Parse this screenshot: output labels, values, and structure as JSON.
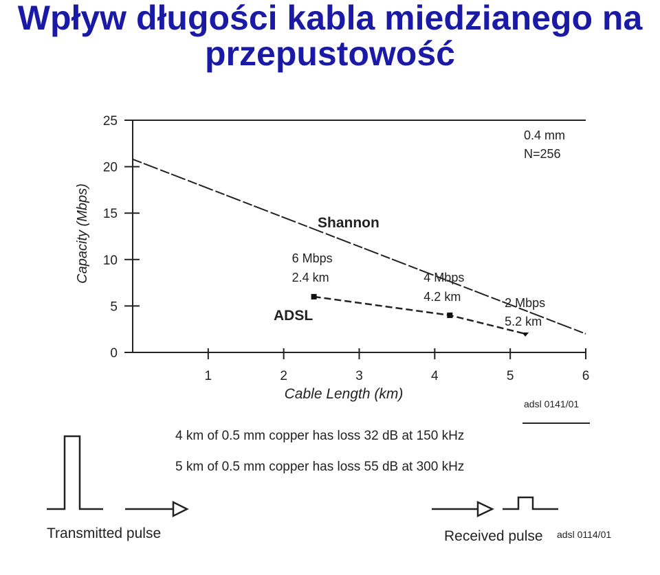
{
  "slide": {
    "title_line1": "Wpływ długości kabla miedzianego na",
    "title_line2": "przepustowość"
  },
  "chart_data": {
    "type": "line",
    "xlabel": "Cable Length (km)",
    "ylabel": "Capacity (Mbps)",
    "xlim": [
      0,
      6
    ],
    "ylim": [
      0,
      25
    ],
    "x_ticks": [
      1,
      2,
      3,
      4,
      5,
      6
    ],
    "y_ticks": [
      0,
      5,
      10,
      15,
      20,
      25
    ],
    "grid": false,
    "annotation_corner": [
      "0.4 mm",
      "N=256"
    ],
    "series": [
      {
        "name": "Shannon",
        "x": [
          0,
          6
        ],
        "y": [
          20.8,
          2.0
        ]
      },
      {
        "name": "ADSL",
        "x": [
          2.4,
          4.2,
          5.2
        ],
        "y": [
          6,
          4,
          2
        ]
      }
    ],
    "point_labels": [
      {
        "line1": "6 Mbps",
        "line2": "2.4 km",
        "x": 2.4,
        "y": 6
      },
      {
        "line1": "4 Mbps",
        "line2": "4.2 km",
        "x": 4.2,
        "y": 4
      },
      {
        "line1": "2 Mbps",
        "line2": "5.2 km",
        "x": 5.2,
        "y": 2
      }
    ],
    "code": "adsl 0141/01"
  },
  "notes": {
    "line1": "4 km of 0.5 mm copper has loss 32 dB at 150 kHz",
    "line2": "5 km of 0.5 mm copper has loss 55 dB at 300 kHz"
  },
  "pulses": {
    "transmitted_label": "Transmitted pulse",
    "received_label": "Received pulse",
    "code": "adsl 0114/01"
  }
}
